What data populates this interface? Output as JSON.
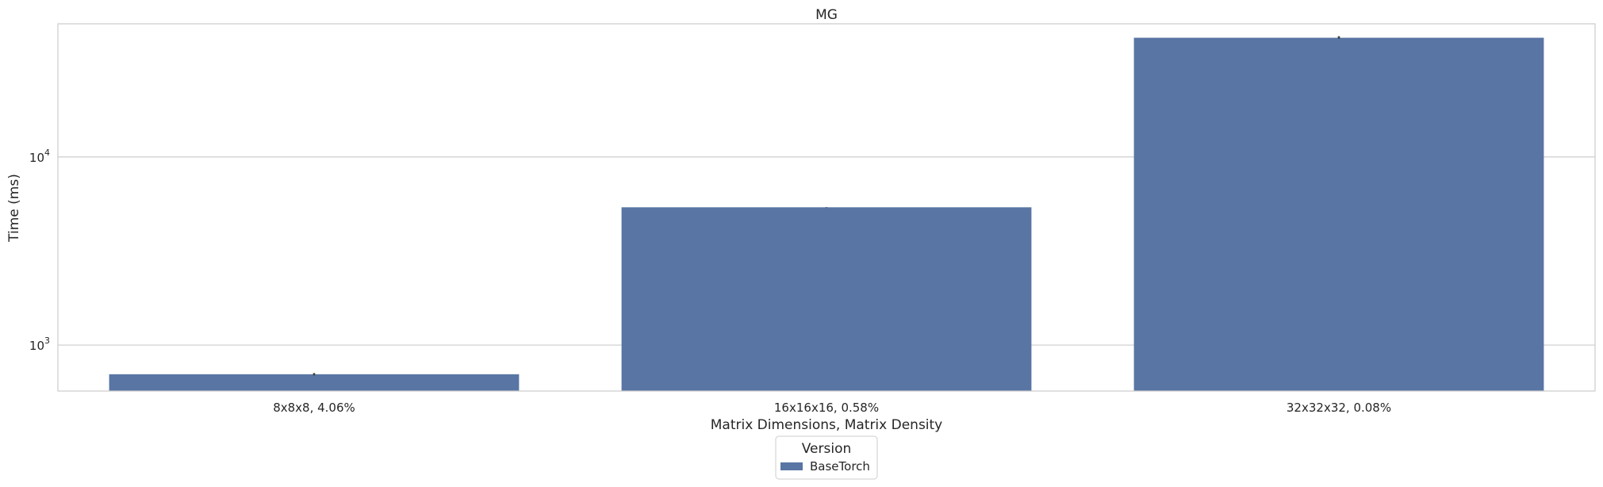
{
  "chart_data": {
    "type": "bar",
    "title": "MG",
    "xlabel": "Matrix Dimensions, Matrix Density",
    "ylabel": "Time (ms)",
    "yscale": "log",
    "ylim": [
      570,
      51000
    ],
    "y_ticks": [
      {
        "value": 1000,
        "base": "10",
        "exp": "3"
      },
      {
        "value": 10000,
        "base": "10",
        "exp": "4"
      }
    ],
    "grid": "horizontal",
    "categories": [
      "8x8x8, 4.06%",
      "16x16x16, 0.58%",
      "32x32x32, 0.08%"
    ],
    "series": [
      {
        "name": "BaseTorch",
        "color": "#5975a4",
        "values": [
          700,
          5400,
          43000
        ],
        "error": [
          [
            690,
            710
          ],
          [
            5390,
            5410
          ],
          [
            42500,
            43800
          ]
        ]
      }
    ],
    "legend": {
      "title": "Version",
      "position": "bottom-center"
    }
  }
}
